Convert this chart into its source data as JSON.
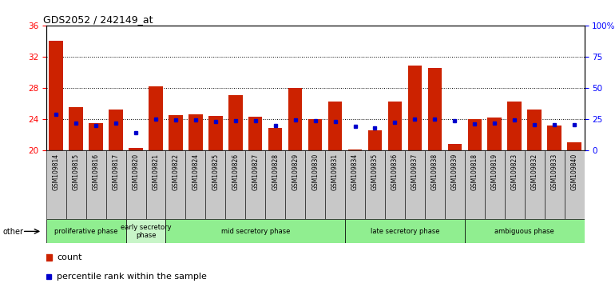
{
  "title": "GDS2052 / 242149_at",
  "samples": [
    "GSM109814",
    "GSM109815",
    "GSM109816",
    "GSM109817",
    "GSM109820",
    "GSM109821",
    "GSM109822",
    "GSM109824",
    "GSM109825",
    "GSM109826",
    "GSM109827",
    "GSM109828",
    "GSM109829",
    "GSM109830",
    "GSM109831",
    "GSM109834",
    "GSM109835",
    "GSM109836",
    "GSM109837",
    "GSM109838",
    "GSM109839",
    "GSM109818",
    "GSM109819",
    "GSM109823",
    "GSM109832",
    "GSM109833",
    "GSM109840"
  ],
  "count_values": [
    34.0,
    25.5,
    23.5,
    25.2,
    20.3,
    28.2,
    24.5,
    24.6,
    24.4,
    27.0,
    24.3,
    22.8,
    28.0,
    24.0,
    26.2,
    20.1,
    22.5,
    26.2,
    30.8,
    30.5,
    20.8,
    24.0,
    24.2,
    26.2,
    25.2,
    23.1,
    21.0
  ],
  "percentile_values": [
    24.6,
    23.5,
    23.1,
    23.5,
    22.2,
    24.0,
    23.9,
    23.9,
    23.7,
    23.8,
    23.8,
    23.1,
    23.9,
    23.8,
    23.7,
    23.0,
    22.8,
    23.6,
    24.0,
    24.0,
    23.8,
    23.3,
    23.5,
    23.9,
    23.2,
    23.2,
    23.2
  ],
  "phases": [
    {
      "name": "proliferative phase",
      "start": 0,
      "end": 4,
      "color": "#90EE90"
    },
    {
      "name": "early secretory\nphase",
      "start": 4,
      "end": 6,
      "color": "#c8f5c8"
    },
    {
      "name": "mid secretory phase",
      "start": 6,
      "end": 15,
      "color": "#90EE90"
    },
    {
      "name": "late secretory phase",
      "start": 15,
      "end": 21,
      "color": "#90EE90"
    },
    {
      "name": "ambiguous phase",
      "start": 21,
      "end": 27,
      "color": "#90EE90"
    }
  ],
  "ylim_left": [
    20,
    36
  ],
  "yticks_left": [
    20,
    24,
    28,
    32,
    36
  ],
  "ylim_right": [
    0,
    100
  ],
  "yticks_right": [
    0,
    25,
    50,
    75,
    100
  ],
  "yticklabels_right": [
    "0",
    "25",
    "50",
    "75",
    "100%"
  ],
  "bar_color": "#CC2200",
  "percentile_color": "#0000CC",
  "grid_color": "#000000",
  "tick_bg_color": "#C8C8C8",
  "plot_bg": "#FFFFFF"
}
